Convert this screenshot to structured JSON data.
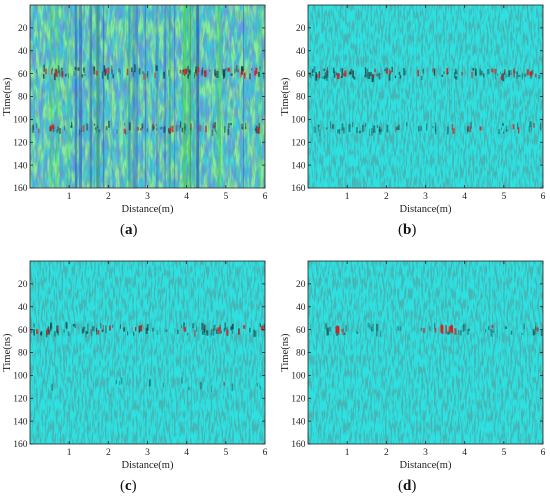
{
  "chart_data": [
    {
      "type": "heatmap",
      "panel_label": "a",
      "xlabel": "Distance(m)",
      "ylabel": "Time(ns)",
      "xlim": [
        0,
        6
      ],
      "ylim": [
        160,
        0
      ],
      "xticks": [
        1,
        2,
        3,
        4,
        5,
        6
      ],
      "yticks": [
        20,
        40,
        60,
        80,
        100,
        120,
        140,
        160
      ],
      "reflection_bands": [
        {
          "time": 59,
          "strength": 0.9
        },
        {
          "time": 108,
          "strength": 0.75
        }
      ],
      "noise_level": 0.85,
      "background_color": "#3fc7de",
      "noise_color": "#2a4fc4"
    },
    {
      "type": "heatmap",
      "panel_label": "b",
      "xlabel": "Distance(m)",
      "ylabel": "Time(ns)",
      "xlim": [
        0,
        6
      ],
      "ylim": [
        160,
        0
      ],
      "xticks": [
        1,
        2,
        3,
        4,
        5,
        6
      ],
      "yticks": [
        20,
        40,
        60,
        80,
        100,
        120,
        140,
        160
      ],
      "reflection_bands": [
        {
          "time": 60,
          "strength": 0.95
        },
        {
          "time": 108,
          "strength": 0.55
        }
      ],
      "noise_level": 0.35,
      "background_color": "#2ee0e0"
    },
    {
      "type": "heatmap",
      "panel_label": "c",
      "xlabel": "Distance(m)",
      "ylabel": "Time(ns)",
      "xlim": [
        0,
        6
      ],
      "ylim": [
        160,
        0
      ],
      "xticks": [
        1,
        2,
        3,
        4,
        5,
        6
      ],
      "yticks": [
        20,
        40,
        60,
        80,
        100,
        120,
        140,
        160
      ],
      "reflection_bands": [
        {
          "time": 60,
          "strength": 0.85
        },
        {
          "time": 108,
          "strength": 0.15
        }
      ],
      "noise_level": 0.3,
      "background_color": "#2ee0e0"
    },
    {
      "type": "heatmap",
      "panel_label": "d",
      "xlabel": "Distance(m)",
      "ylabel": "Time(ns)",
      "xlim": [
        0,
        6
      ],
      "ylim": [
        160,
        0
      ],
      "xticks": [
        1,
        2,
        3,
        4,
        5,
        6
      ],
      "yticks": [
        20,
        40,
        60,
        80,
        100,
        120,
        140,
        160
      ],
      "reflection_bands": [
        {
          "time": 60,
          "strength": 0.45
        }
      ],
      "hotspots": [
        {
          "distance": 0.75,
          "time": 60
        },
        {
          "distance": 3.45,
          "time": 60
        },
        {
          "distance": 3.65,
          "time": 60
        }
      ],
      "noise_level": 0.3,
      "background_color": "#2ee0e0"
    }
  ],
  "colors": {
    "background": "#2ee0e0",
    "trace": "#1a3d3d",
    "hot": "#d81c1c",
    "noise_blue": "#2a4fc4",
    "noise_green": "#46e04a"
  }
}
